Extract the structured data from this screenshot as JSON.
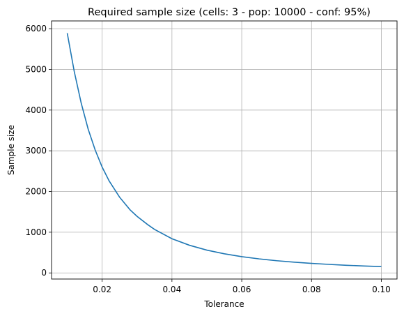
{
  "chart_data": {
    "type": "line",
    "title": "Required sample size (cells: 3 - pop: 10000 - conf: 95%)",
    "xlabel": "Tolerance",
    "ylabel": "Sample size",
    "xlim": [
      0.0055,
      0.1045
    ],
    "ylim": [
      -150,
      6190
    ],
    "grid": true,
    "line_color": "#1f77b4",
    "grid_color": "#b0b0b0",
    "xticks": [
      0.02,
      0.04,
      0.06,
      0.08,
      0.1
    ],
    "xtick_labels": [
      "0.02",
      "0.04",
      "0.06",
      "0.08",
      "0.10"
    ],
    "yticks": [
      0,
      1000,
      2000,
      3000,
      4000,
      5000,
      6000
    ],
    "ytick_labels": [
      "0",
      "1000",
      "2000",
      "3000",
      "4000",
      "5000",
      "6000"
    ],
    "series": [
      {
        "x": [
          0.01,
          0.012,
          0.014,
          0.016,
          0.018,
          0.02,
          0.022,
          0.025,
          0.028,
          0.03,
          0.033,
          0.035,
          0.04,
          0.045,
          0.05,
          0.055,
          0.06,
          0.065,
          0.07,
          0.075,
          0.08,
          0.085,
          0.09,
          0.095,
          0.1
        ],
        "y": [
          5890,
          4950,
          4170,
          3530,
          3020,
          2600,
          2260,
          1860,
          1550,
          1390,
          1190,
          1070,
          840,
          680,
          560,
          470,
          400,
          345,
          300,
          265,
          235,
          210,
          188,
          170,
          155
        ]
      }
    ]
  }
}
